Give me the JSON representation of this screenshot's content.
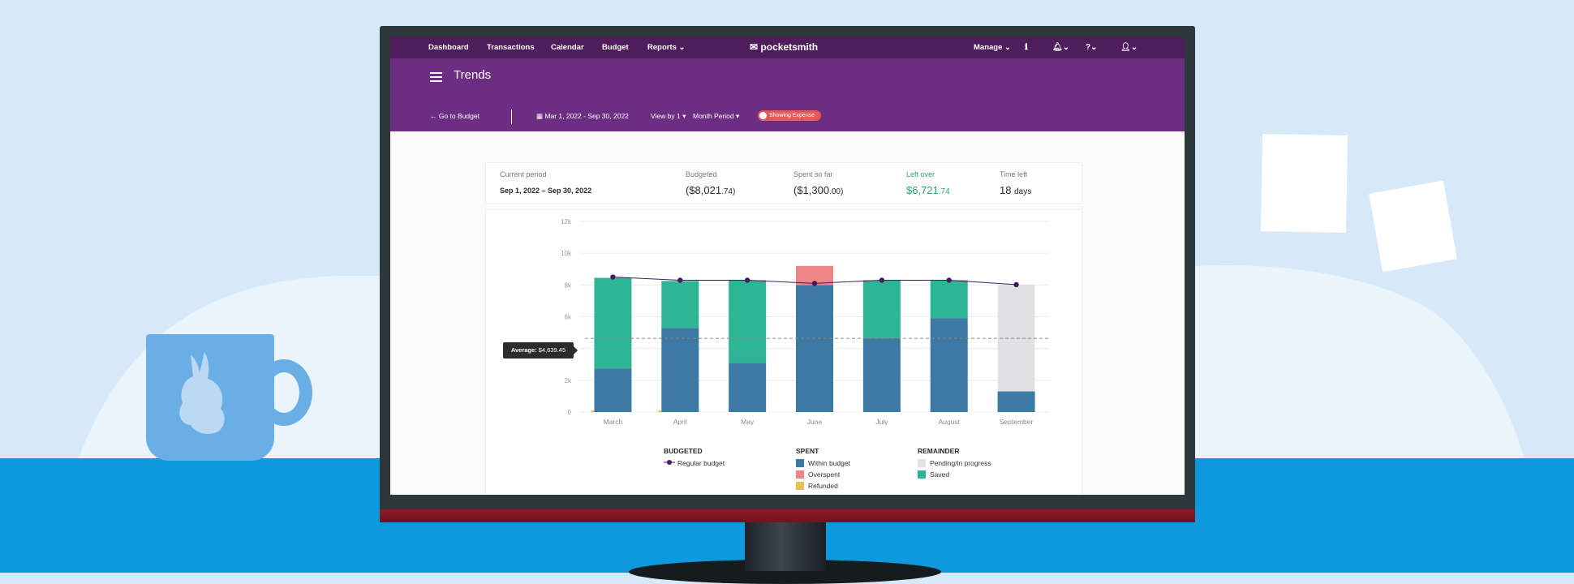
{
  "nav": {
    "items": [
      "Dashboard",
      "Transactions",
      "Calendar",
      "Budget",
      "Reports"
    ],
    "brand": "pocketsmith",
    "manage": "Manage"
  },
  "header": {
    "title": "Trends",
    "back_link": "Go to Budget",
    "date_range": "Mar 1, 2022 - Sep 30, 2022",
    "view_by": "View by 1",
    "period": "Month Period",
    "toggle_label": "Showing Expense"
  },
  "summary": {
    "current_period_label": "Current period",
    "current_period_value": "Sep 1, 2022 – Sep 30, 2022",
    "budgeted_label": "Budgeted",
    "budgeted_main": "($8,021",
    "budgeted_cents": ".74)",
    "spent_label": "Spent so far",
    "spent_main": "($1,300",
    "spent_cents": ".00)",
    "leftover_label": "Left over",
    "leftover_main": "$6,721",
    "leftover_cents": ".74",
    "time_left_label": "Time left",
    "time_left_value": "18",
    "time_left_unit": "days"
  },
  "tooltip": {
    "label": "Average:",
    "value": "$4,639.45"
  },
  "legend": {
    "budgeted_title": "BUDGETED",
    "regular_budget": "Regular budget",
    "spent_title": "SPENT",
    "within_budget": "Within budget",
    "overspent": "Overspent",
    "refunded": "Refunded",
    "remainder_title": "REMAINDER",
    "pending": "Pending/in progress",
    "saved": "Saved"
  },
  "colors": {
    "within": "#3d7aa3",
    "saved": "#2eb596",
    "overspent": "#ef8585",
    "pending": "#e1e1e4",
    "refunded": "#e9c04c",
    "budget_line": "#4a1a5e",
    "leftover": "#28a46f"
  },
  "chart_data": {
    "type": "bar",
    "categories": [
      "March",
      "April",
      "May",
      "June",
      "July",
      "August",
      "September"
    ],
    "y_ticks": [
      "0",
      "2k",
      "4k",
      "6k",
      "8k",
      "10k",
      "12k"
    ],
    "ylim": [
      0,
      12000
    ],
    "stacked": true,
    "series": [
      {
        "name": "Within budget",
        "values": [
          2750,
          5300,
          3100,
          8000,
          4650,
          5900,
          1300
        ]
      },
      {
        "name": "Saved",
        "values": [
          5700,
          2950,
          5200,
          0,
          3650,
          2400,
          0
        ]
      },
      {
        "name": "Overspent",
        "values": [
          0,
          0,
          0,
          1200,
          0,
          0,
          0
        ]
      },
      {
        "name": "Pending/in progress",
        "values": [
          0,
          0,
          0,
          0,
          0,
          0,
          6722
        ]
      },
      {
        "name": "Refunded",
        "values": [
          20,
          20,
          0,
          0,
          0,
          0,
          0
        ]
      }
    ],
    "line": {
      "name": "Regular budget",
      "values": [
        8500,
        8300,
        8300,
        8100,
        8300,
        8300,
        8022
      ]
    },
    "average": 4639.45,
    "grid": true
  }
}
